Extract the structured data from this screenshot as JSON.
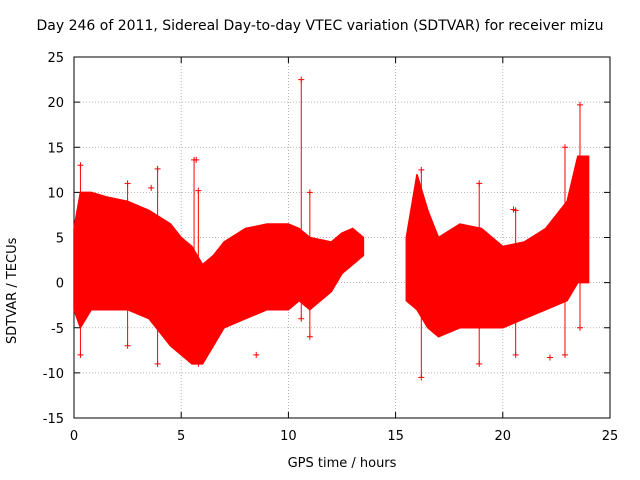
{
  "chart_data": {
    "type": "line",
    "title": "Day 246 of 2011, Sidereal Day-to-day VTEC variation (SDTVAR) for receiver mizu",
    "xlabel": "GPS time / hours",
    "ylabel": "SDTVAR / TECUs",
    "xlim": [
      0,
      25
    ],
    "ylim": [
      -15,
      25
    ],
    "xticks": [
      0,
      5,
      10,
      15,
      20,
      25
    ],
    "yticks": [
      -15,
      -10,
      -5,
      0,
      5,
      10,
      15,
      20,
      25
    ],
    "grid": true,
    "series_color": "#ff0000",
    "upper_envelope": {
      "x": [
        0,
        0.3,
        0.8,
        1.5,
        2.5,
        3.5,
        4.5,
        5.0,
        5.5,
        6.0,
        6.5,
        7.0,
        8.0,
        9.0,
        10.0,
        10.5,
        11.0,
        12.0,
        12.5,
        13.0,
        13.5
      ],
      "y": [
        6,
        10,
        10,
        9.5,
        9,
        8,
        6.5,
        5,
        4,
        2,
        3,
        4.5,
        6,
        6.5,
        6.5,
        6,
        5,
        4.5,
        5.5,
        6,
        5
      ]
    },
    "lower_envelope": {
      "x": [
        0,
        0.3,
        0.8,
        1.5,
        2.5,
        3.5,
        4.5,
        5.0,
        5.5,
        6.0,
        6.5,
        7.0,
        8.0,
        9.0,
        10.0,
        10.5,
        11.0,
        12.0,
        12.5,
        13.0,
        13.5
      ],
      "y": [
        -3,
        -5,
        -3,
        -3,
        -3,
        -4,
        -7,
        -8,
        -9,
        -9,
        -7,
        -5,
        -4,
        -3,
        -3,
        -2,
        -3,
        -1,
        1,
        2,
        3
      ]
    },
    "upper_envelope_2": {
      "x": [
        15.5,
        16.0,
        16.5,
        17.0,
        18.0,
        19.0,
        20.0,
        21.0,
        22.0,
        23.0,
        23.5,
        24.0
      ],
      "y": [
        5,
        12,
        8,
        5,
        6.5,
        6,
        4,
        4.5,
        6,
        9,
        14,
        14
      ]
    },
    "lower_envelope_2": {
      "x": [
        15.5,
        16.0,
        16.5,
        17.0,
        18.0,
        19.0,
        20.0,
        21.0,
        22.0,
        23.0,
        23.5,
        24.0
      ],
      "y": [
        -2,
        -3,
        -5,
        -6,
        -5,
        -5,
        -5,
        -4,
        -3,
        -2,
        0,
        0
      ]
    },
    "spikes": [
      {
        "x": 0.3,
        "ymin": -8,
        "ymax": 13
      },
      {
        "x": 2.5,
        "ymin": -7,
        "ymax": 11
      },
      {
        "x": 3.9,
        "ymin": -9,
        "ymax": 12.6
      },
      {
        "x": 5.6,
        "ymin": -8,
        "ymax": 13.6
      },
      {
        "x": 5.8,
        "ymin": -9,
        "ymax": 10.2
      },
      {
        "x": 10.6,
        "ymin": -4,
        "ymax": 22.5
      },
      {
        "x": 11.0,
        "ymin": -6,
        "ymax": 10
      },
      {
        "x": 16.2,
        "ymin": -10.5,
        "ymax": 12.5
      },
      {
        "x": 18.9,
        "ymin": -9,
        "ymax": 11
      },
      {
        "x": 20.6,
        "ymin": -8,
        "ymax": 8
      },
      {
        "x": 22.9,
        "ymin": -8,
        "ymax": 15
      },
      {
        "x": 23.6,
        "ymin": -5,
        "ymax": 19.7
      }
    ],
    "outliers": [
      {
        "x": 5.7,
        "y": 13.6
      },
      {
        "x": 3.6,
        "y": 10.5
      },
      {
        "x": 20.5,
        "y": 8.1
      },
      {
        "x": 22.2,
        "y": -8.3
      },
      {
        "x": 8.5,
        "y": -8
      }
    ]
  }
}
